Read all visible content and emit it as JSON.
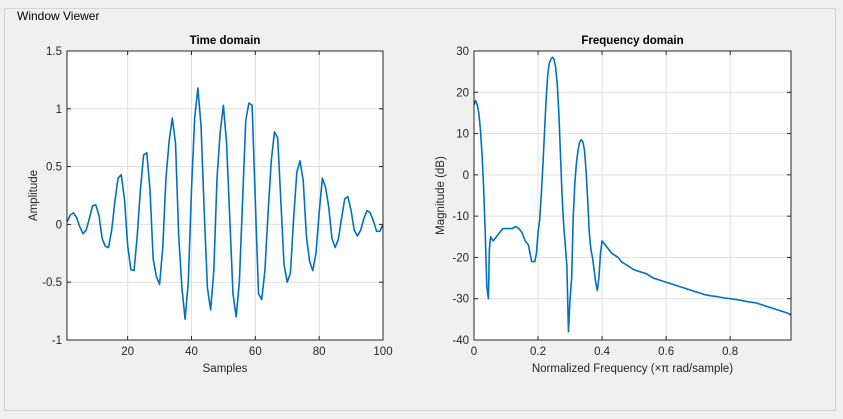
{
  "window": {
    "title": "Window Viewer"
  },
  "chart_data": [
    {
      "type": "line",
      "title": "Time domain",
      "xlabel": "Samples",
      "ylabel": "Amplitude",
      "xlim": [
        1,
        100
      ],
      "ylim": [
        -1,
        1.5
      ],
      "xticks": [
        20,
        40,
        60,
        80,
        100
      ],
      "xtick_labels": [
        "20",
        "40",
        "60",
        "80",
        "100"
      ],
      "yticks": [
        -1,
        -0.5,
        0,
        0.5,
        1,
        1.5
      ],
      "ytick_labels": [
        "-1",
        "-0.5",
        "0",
        "0.5",
        "1",
        "1.5"
      ],
      "grid": true,
      "color": "#0072bd",
      "series": [
        {
          "x": [
            1,
            2,
            3,
            4,
            5,
            6,
            7,
            8,
            9,
            10,
            11,
            12,
            13,
            14,
            15,
            16,
            17,
            18,
            19,
            20,
            21,
            22,
            23,
            24,
            25,
            26,
            27,
            28,
            29,
            30,
            31,
            32,
            33,
            34,
            35,
            36,
            37,
            38,
            39,
            40,
            41,
            42,
            43,
            44,
            45,
            46,
            47,
            48,
            49,
            50,
            51,
            52,
            53,
            54,
            55,
            56,
            57,
            58,
            59,
            60,
            61,
            62,
            63,
            64,
            65,
            66,
            67,
            68,
            69,
            70,
            71,
            72,
            73,
            74,
            75,
            76,
            77,
            78,
            79,
            80,
            81,
            82,
            83,
            84,
            85,
            86,
            87,
            88,
            89,
            90,
            91,
            92,
            93,
            94,
            95,
            96,
            97,
            98,
            99,
            100
          ],
          "y": [
            0.02,
            0.08,
            0.1,
            0.06,
            -0.02,
            -0.08,
            -0.05,
            0.05,
            0.16,
            0.17,
            0.08,
            -0.12,
            -0.19,
            -0.2,
            -0.05,
            0.2,
            0.4,
            0.43,
            0.22,
            -0.18,
            -0.39,
            -0.4,
            -0.1,
            0.3,
            0.6,
            0.62,
            0.3,
            -0.3,
            -0.45,
            -0.52,
            -0.2,
            0.4,
            0.72,
            0.92,
            0.7,
            -0.1,
            -0.55,
            -0.82,
            -0.5,
            0.3,
            0.92,
            1.18,
            0.85,
            0.1,
            -0.55,
            -0.74,
            -0.4,
            0.4,
            0.8,
            1.03,
            0.7,
            0.05,
            -0.6,
            -0.8,
            -0.5,
            0.2,
            0.9,
            1.05,
            1.03,
            0.2,
            -0.6,
            -0.65,
            -0.4,
            0.1,
            0.55,
            0.8,
            0.75,
            0.2,
            -0.35,
            -0.5,
            -0.42,
            0.05,
            0.45,
            0.55,
            0.38,
            -0.1,
            -0.32,
            -0.4,
            -0.25,
            0.1,
            0.4,
            0.32,
            0.15,
            -0.12,
            -0.2,
            -0.13,
            0.05,
            0.22,
            0.24,
            0.12,
            -0.05,
            -0.1,
            -0.05,
            0.05,
            0.12,
            0.1,
            0.03,
            -0.06,
            -0.06,
            0.0
          ]
        }
      ]
    },
    {
      "type": "line",
      "title": "Frequency domain",
      "xlabel": "Normalized Frequency  (×π rad/sample)",
      "ylabel": "Magnitude (dB)",
      "xlim": [
        0,
        0.99
      ],
      "ylim": [
        -40,
        30
      ],
      "xticks": [
        0,
        0.2,
        0.4,
        0.6,
        0.8
      ],
      "xtick_labels": [
        "0",
        "0.2",
        "0.4",
        "0.6",
        "0.8"
      ],
      "yticks": [
        -40,
        -30,
        -20,
        -10,
        0,
        10,
        20,
        30
      ],
      "ytick_labels": [
        "-40",
        "-30",
        "-20",
        "-10",
        "0",
        "10",
        "20",
        "30"
      ],
      "grid": true,
      "color": "#0072bd",
      "series": [
        {
          "x": [
            0,
            0.005,
            0.01,
            0.015,
            0.02,
            0.025,
            0.03,
            0.035,
            0.04,
            0.045,
            0.048,
            0.052,
            0.06,
            0.07,
            0.08,
            0.09,
            0.1,
            0.11,
            0.12,
            0.13,
            0.14,
            0.15,
            0.16,
            0.17,
            0.18,
            0.19,
            0.195,
            0.2,
            0.205,
            0.21,
            0.215,
            0.22,
            0.225,
            0.23,
            0.235,
            0.24,
            0.245,
            0.25,
            0.255,
            0.26,
            0.265,
            0.27,
            0.275,
            0.28,
            0.285,
            0.29,
            0.295,
            0.3,
            0.305,
            0.31,
            0.315,
            0.32,
            0.325,
            0.33,
            0.335,
            0.34,
            0.345,
            0.35,
            0.355,
            0.36,
            0.365,
            0.37,
            0.375,
            0.38,
            0.385,
            0.39,
            0.395,
            0.4,
            0.41,
            0.42,
            0.43,
            0.44,
            0.45,
            0.46,
            0.47,
            0.48,
            0.49,
            0.5,
            0.52,
            0.54,
            0.56,
            0.58,
            0.6,
            0.62,
            0.64,
            0.66,
            0.68,
            0.7,
            0.72,
            0.74,
            0.76,
            0.78,
            0.8,
            0.82,
            0.84,
            0.86,
            0.88,
            0.9,
            0.92,
            0.94,
            0.96,
            0.98,
            0.99
          ],
          "y": [
            17,
            18,
            17,
            15,
            11,
            5,
            -3,
            -14,
            -27,
            -30,
            -18,
            -15,
            -16,
            -15,
            -14,
            -13,
            -13,
            -13,
            -13,
            -12.5,
            -13,
            -14,
            -16,
            -17,
            -21,
            -21,
            -19,
            -14,
            -11,
            -5,
            2,
            10,
            18,
            24,
            27,
            28,
            28.5,
            28,
            26,
            22,
            15,
            5,
            -5,
            -12,
            -17,
            -22,
            -38,
            -30,
            -25,
            -10,
            -2,
            3,
            6,
            8,
            8.5,
            8,
            6,
            1,
            -6,
            -14,
            -18,
            -20,
            -23,
            -26,
            -28,
            -25,
            -19,
            -16,
            -17,
            -18,
            -19,
            -19.5,
            -20,
            -21,
            -21.5,
            -22,
            -22.5,
            -23,
            -23.5,
            -24,
            -25,
            -25.5,
            -26,
            -26.5,
            -27,
            -27.5,
            -28,
            -28.5,
            -29,
            -29.3,
            -29.5,
            -29.8,
            -30,
            -30.2,
            -30.5,
            -30.8,
            -31,
            -31.5,
            -32,
            -32.5,
            -33,
            -33.5,
            -34
          ]
        }
      ]
    }
  ]
}
